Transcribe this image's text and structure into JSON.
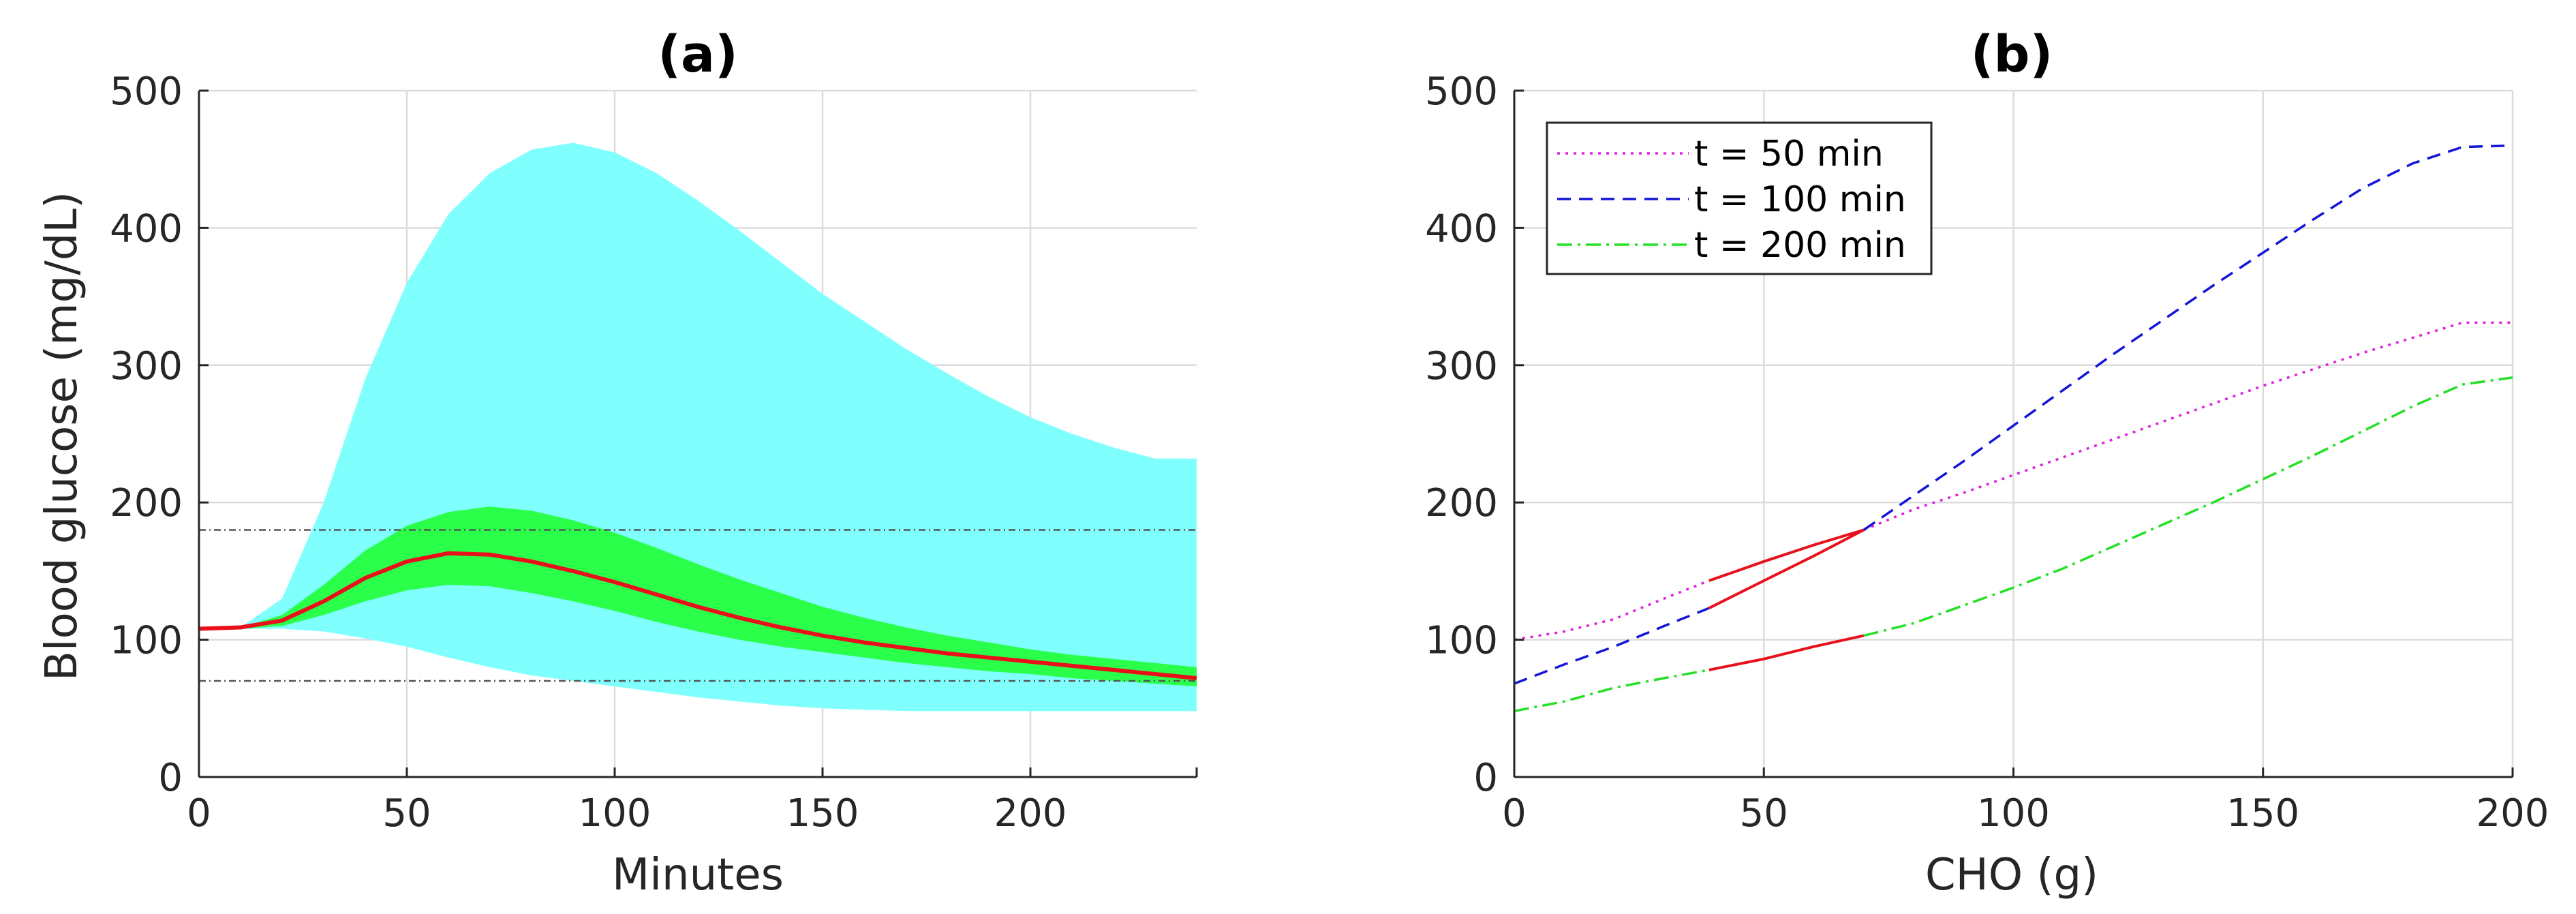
{
  "chart_data": [
    {
      "type": "area",
      "title": "(a)",
      "xlabel": "Minutes",
      "ylabel": "Blood glucose (mg/dL)",
      "xlim": [
        0,
        240
      ],
      "ylim": [
        0,
        500
      ],
      "xticks": [
        0,
        50,
        100,
        150,
        200
      ],
      "yticks": [
        0,
        100,
        200,
        300,
        400,
        500
      ],
      "grid": true,
      "colors": {
        "outer_band": "#80FFFF",
        "inner_band": "#2AFF4A",
        "mean": "#E8111B",
        "threshold": "#555555"
      },
      "thresholds": [
        180,
        70
      ],
      "x": [
        0,
        10,
        20,
        30,
        40,
        50,
        60,
        70,
        80,
        90,
        100,
        110,
        120,
        130,
        140,
        150,
        160,
        170,
        180,
        190,
        200,
        210,
        220,
        230,
        240
      ],
      "series": [
        {
          "role": "outer_upper",
          "values": [
            108,
            109,
            130,
            200,
            290,
            360,
            410,
            440,
            457,
            462,
            455,
            440,
            420,
            398,
            375,
            352,
            332,
            312,
            294,
            277,
            262,
            250,
            240,
            232,
            232
          ]
        },
        {
          "role": "outer_lower",
          "values": [
            108,
            108,
            108,
            106,
            101,
            95,
            87,
            80,
            74,
            70,
            66,
            62,
            58,
            55,
            52,
            50,
            49,
            48,
            48,
            48,
            48,
            48,
            48,
            48,
            48
          ]
        },
        {
          "role": "inner_upper",
          "values": [
            108,
            109,
            118,
            140,
            165,
            183,
            193,
            197,
            194,
            187,
            178,
            167,
            155,
            144,
            134,
            124,
            116,
            109,
            103,
            98,
            93,
            89,
            86,
            83,
            80
          ]
        },
        {
          "role": "inner_lower",
          "values": [
            108,
            108,
            110,
            118,
            128,
            136,
            140,
            139,
            134,
            128,
            121,
            113,
            106,
            100,
            95,
            91,
            87,
            83,
            80,
            77,
            75,
            72,
            70,
            68,
            66
          ]
        },
        {
          "role": "mean",
          "values": [
            108,
            109,
            114,
            128,
            145,
            157,
            163,
            162,
            157,
            150,
            142,
            133,
            124,
            116,
            109,
            103,
            98,
            94,
            90,
            87,
            84,
            81,
            78,
            75,
            72
          ]
        }
      ]
    },
    {
      "type": "line",
      "title": "(b)",
      "xlabel": "CHO (g)",
      "ylabel": "",
      "xlim": [
        0,
        200
      ],
      "ylim": [
        0,
        500
      ],
      "xticks": [
        0,
        50,
        100,
        150,
        200
      ],
      "yticks": [
        0,
        100,
        200,
        300,
        400,
        500
      ],
      "grid": true,
      "legend_position": "top-left",
      "x": [
        0,
        10,
        20,
        30,
        39,
        50,
        60,
        70,
        80,
        90,
        100,
        110,
        120,
        130,
        140,
        150,
        160,
        170,
        180,
        190,
        200
      ],
      "highlight_range": [
        39,
        70
      ],
      "highlight_color": "#E8111B",
      "series": [
        {
          "name": "t = 50 min",
          "color": "#E020E0",
          "dash": "dot",
          "values": [
            100,
            106,
            115,
            130,
            143,
            157,
            169,
            180,
            195,
            207,
            220,
            233,
            246,
            259,
            272,
            285,
            297,
            309,
            320,
            331,
            331
          ]
        },
        {
          "name": "t = 100 min",
          "color": "#1515D8",
          "dash": "dash",
          "values": [
            68,
            82,
            95,
            110,
            123,
            143,
            161,
            180,
            205,
            230,
            256,
            282,
            308,
            333,
            358,
            382,
            406,
            429,
            447,
            459,
            460
          ]
        },
        {
          "name": "t = 200 min",
          "color": "#25E025",
          "dash": "dashdot",
          "values": [
            48,
            55,
            65,
            72,
            78,
            86,
            95,
            103,
            112,
            125,
            138,
            152,
            168,
            184,
            200,
            217,
            234,
            252,
            270,
            286,
            291
          ]
        }
      ]
    }
  ]
}
